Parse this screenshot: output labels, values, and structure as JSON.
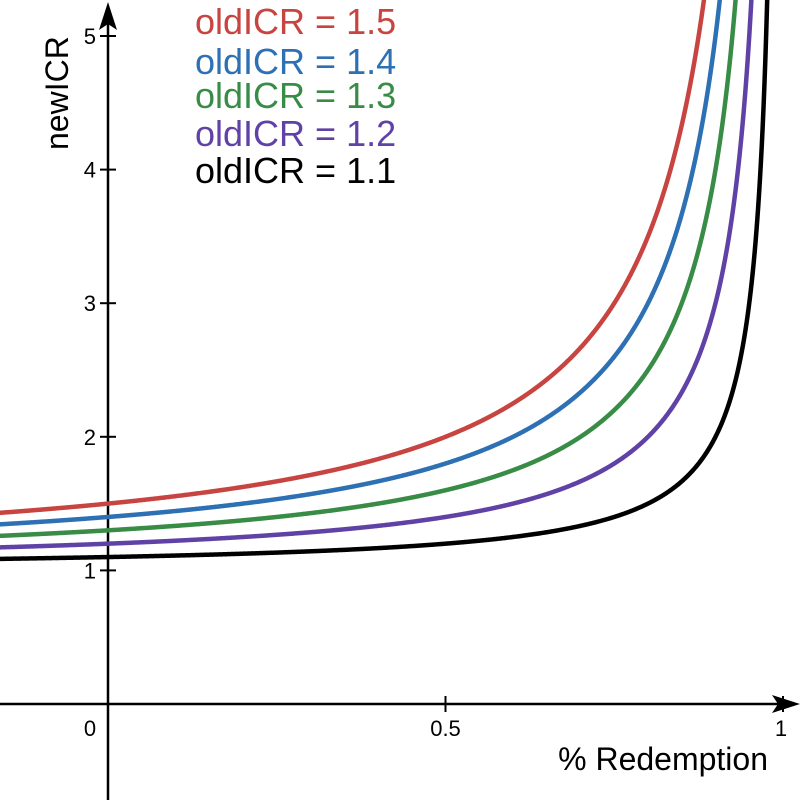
{
  "chart_data": {
    "type": "line",
    "title": "",
    "xlabel": "% Redemption",
    "ylabel": "newICR",
    "xlim": [
      -0.16,
      1.0
    ],
    "ylim": [
      -0.7,
      5.3
    ],
    "grid": false,
    "legend_position": "top-center",
    "x_ticks": [
      {
        "value": 0,
        "label": "0"
      },
      {
        "value": 0.5,
        "label": "0.5"
      },
      {
        "value": 1,
        "label": "1"
      }
    ],
    "y_ticks": [
      {
        "value": 1,
        "label": "1"
      },
      {
        "value": 2,
        "label": "2"
      },
      {
        "value": 3,
        "label": "3"
      },
      {
        "value": 4,
        "label": "4"
      },
      {
        "value": 5,
        "label": "5"
      }
    ],
    "formula": "newICR = (oldICR - x) / (1 - x)",
    "series": [
      {
        "name": "oldICR = 1.5",
        "old_icr": 1.5,
        "color": "#c74440"
      },
      {
        "name": "oldICR = 1.4",
        "old_icr": 1.4,
        "color": "#2d70b3"
      },
      {
        "name": "oldICR = 1.3",
        "old_icr": 1.3,
        "color": "#388c46"
      },
      {
        "name": "oldICR = 1.2",
        "old_icr": 1.2,
        "color": "#6042a6"
      },
      {
        "name": "oldICR = 1.1",
        "old_icr": 1.1,
        "color": "#000000"
      }
    ]
  }
}
